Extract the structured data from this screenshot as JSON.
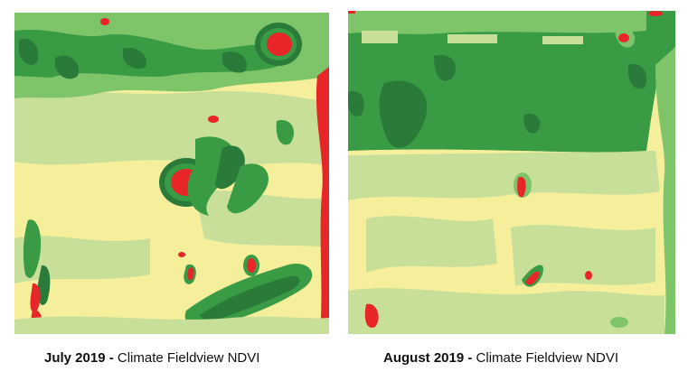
{
  "colors": {
    "very_high": "#2a7a3a",
    "high": "#3a9b45",
    "medium_high": "#7ec56a",
    "medium": "#c8df9a",
    "low": "#f5ef9c",
    "very_low": "#e8262a"
  },
  "maps": [
    {
      "caption_bold": "July 2019 -",
      "caption_text": " Climate Fieldview NDVI"
    },
    {
      "caption_bold": "August 2019 -",
      "caption_text": " Climate Fieldview NDVI"
    }
  ]
}
